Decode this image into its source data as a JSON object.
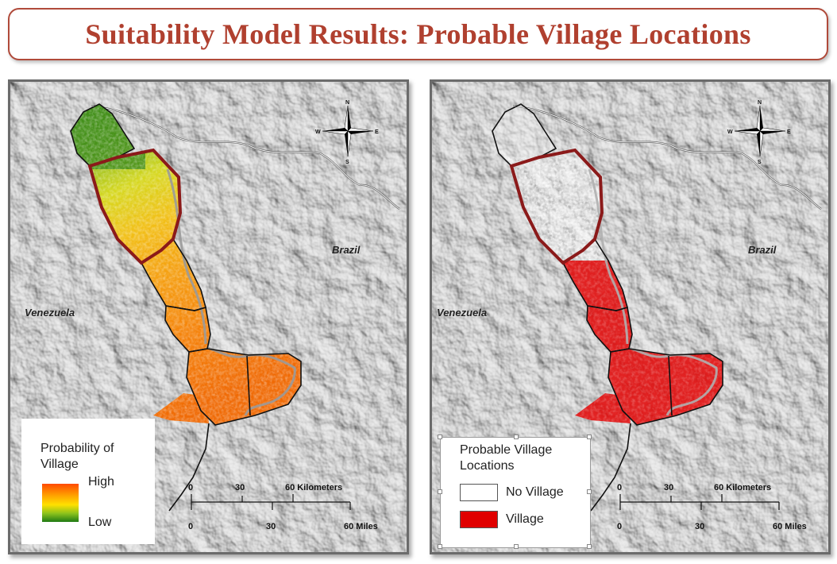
{
  "title": "Suitability Model Results: Probable Village Locations",
  "colors": {
    "title": "#b0402f",
    "boundary_highlight": "#8b1a1a",
    "village": "#e00000",
    "probability_high": "#ff4a00",
    "probability_low": "#1f7a14"
  },
  "maps": {
    "left": {
      "labels": {
        "country_west": "Venezuela",
        "country_east": "Brazil"
      },
      "legend": {
        "title": "Probability of Village",
        "title_line1": "Probability of",
        "title_line2": "Village",
        "high": "High",
        "low": "Low"
      },
      "scale": {
        "km_ticks": [
          "0",
          "30",
          "60 Kilometers"
        ],
        "mi_ticks": [
          "0",
          "30",
          "60 Miles"
        ]
      },
      "north_arrow": {
        "n": "N",
        "s": "S",
        "e": "E",
        "w": "W"
      }
    },
    "right": {
      "labels": {
        "country_west": "Venezuela",
        "country_east": "Brazil"
      },
      "legend": {
        "title": "Probable Village Locations",
        "title_line1": "Probable Village",
        "title_line2": "Locations",
        "items": [
          {
            "label": "No Village",
            "color": "#ffffff"
          },
          {
            "label": "Village",
            "color": "#e00000"
          }
        ]
      },
      "scale": {
        "km_ticks": [
          "0",
          "30",
          "60 Kilometers"
        ],
        "mi_ticks": [
          "0",
          "30",
          "60 Miles"
        ]
      },
      "north_arrow": {
        "n": "N",
        "s": "S",
        "e": "E",
        "w": "W"
      }
    }
  }
}
